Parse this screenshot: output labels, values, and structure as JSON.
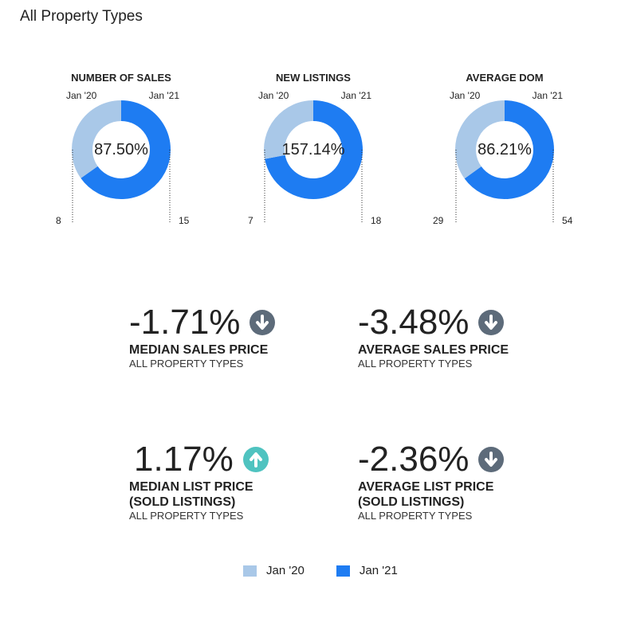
{
  "page": {
    "title": "All Property Types"
  },
  "colors": {
    "jan20": "#a9c8e8",
    "jan21": "#1e7cf2",
    "down": "#5d6b7a",
    "up": "#4fc3c0"
  },
  "chart_data": [
    {
      "type": "pie",
      "title": "NUMBER OF SALES",
      "categories": [
        "Jan '20",
        "Jan '21"
      ],
      "values": [
        8,
        15
      ],
      "center_label": "87.50%",
      "left_label": "Jan '20",
      "right_label": "Jan '21"
    },
    {
      "type": "pie",
      "title": "NEW LISTINGS",
      "categories": [
        "Jan '20",
        "Jan '21"
      ],
      "values": [
        7,
        18
      ],
      "center_label": "157.14%",
      "left_label": "Jan '20",
      "right_label": "Jan '21"
    },
    {
      "type": "pie",
      "title": "AVERAGE DOM",
      "categories": [
        "Jan '20",
        "Jan '21"
      ],
      "values": [
        29,
        54
      ],
      "center_label": "86.21%",
      "left_label": "Jan '20",
      "right_label": "Jan '21"
    }
  ],
  "stats": [
    {
      "pct": "-1.71%",
      "direction": "down",
      "name_line1": "MEDIAN SALES PRICE",
      "name_line2": "",
      "sub": "ALL PROPERTY TYPES"
    },
    {
      "pct": "-3.48%",
      "direction": "down",
      "name_line1": "AVERAGE SALES PRICE",
      "name_line2": "",
      "sub": "ALL PROPERTY TYPES"
    },
    {
      "pct": "1.17%",
      "direction": "up",
      "name_line1": "MEDIAN LIST PRICE",
      "name_line2": "(SOLD LISTINGS)",
      "sub": "ALL PROPERTY TYPES"
    },
    {
      "pct": "-2.36%",
      "direction": "down",
      "name_line1": "AVERAGE LIST PRICE",
      "name_line2": "(SOLD LISTINGS)",
      "sub": "ALL PROPERTY TYPES"
    }
  ],
  "legend": [
    {
      "label": "Jan '20"
    },
    {
      "label": "Jan '21"
    }
  ]
}
